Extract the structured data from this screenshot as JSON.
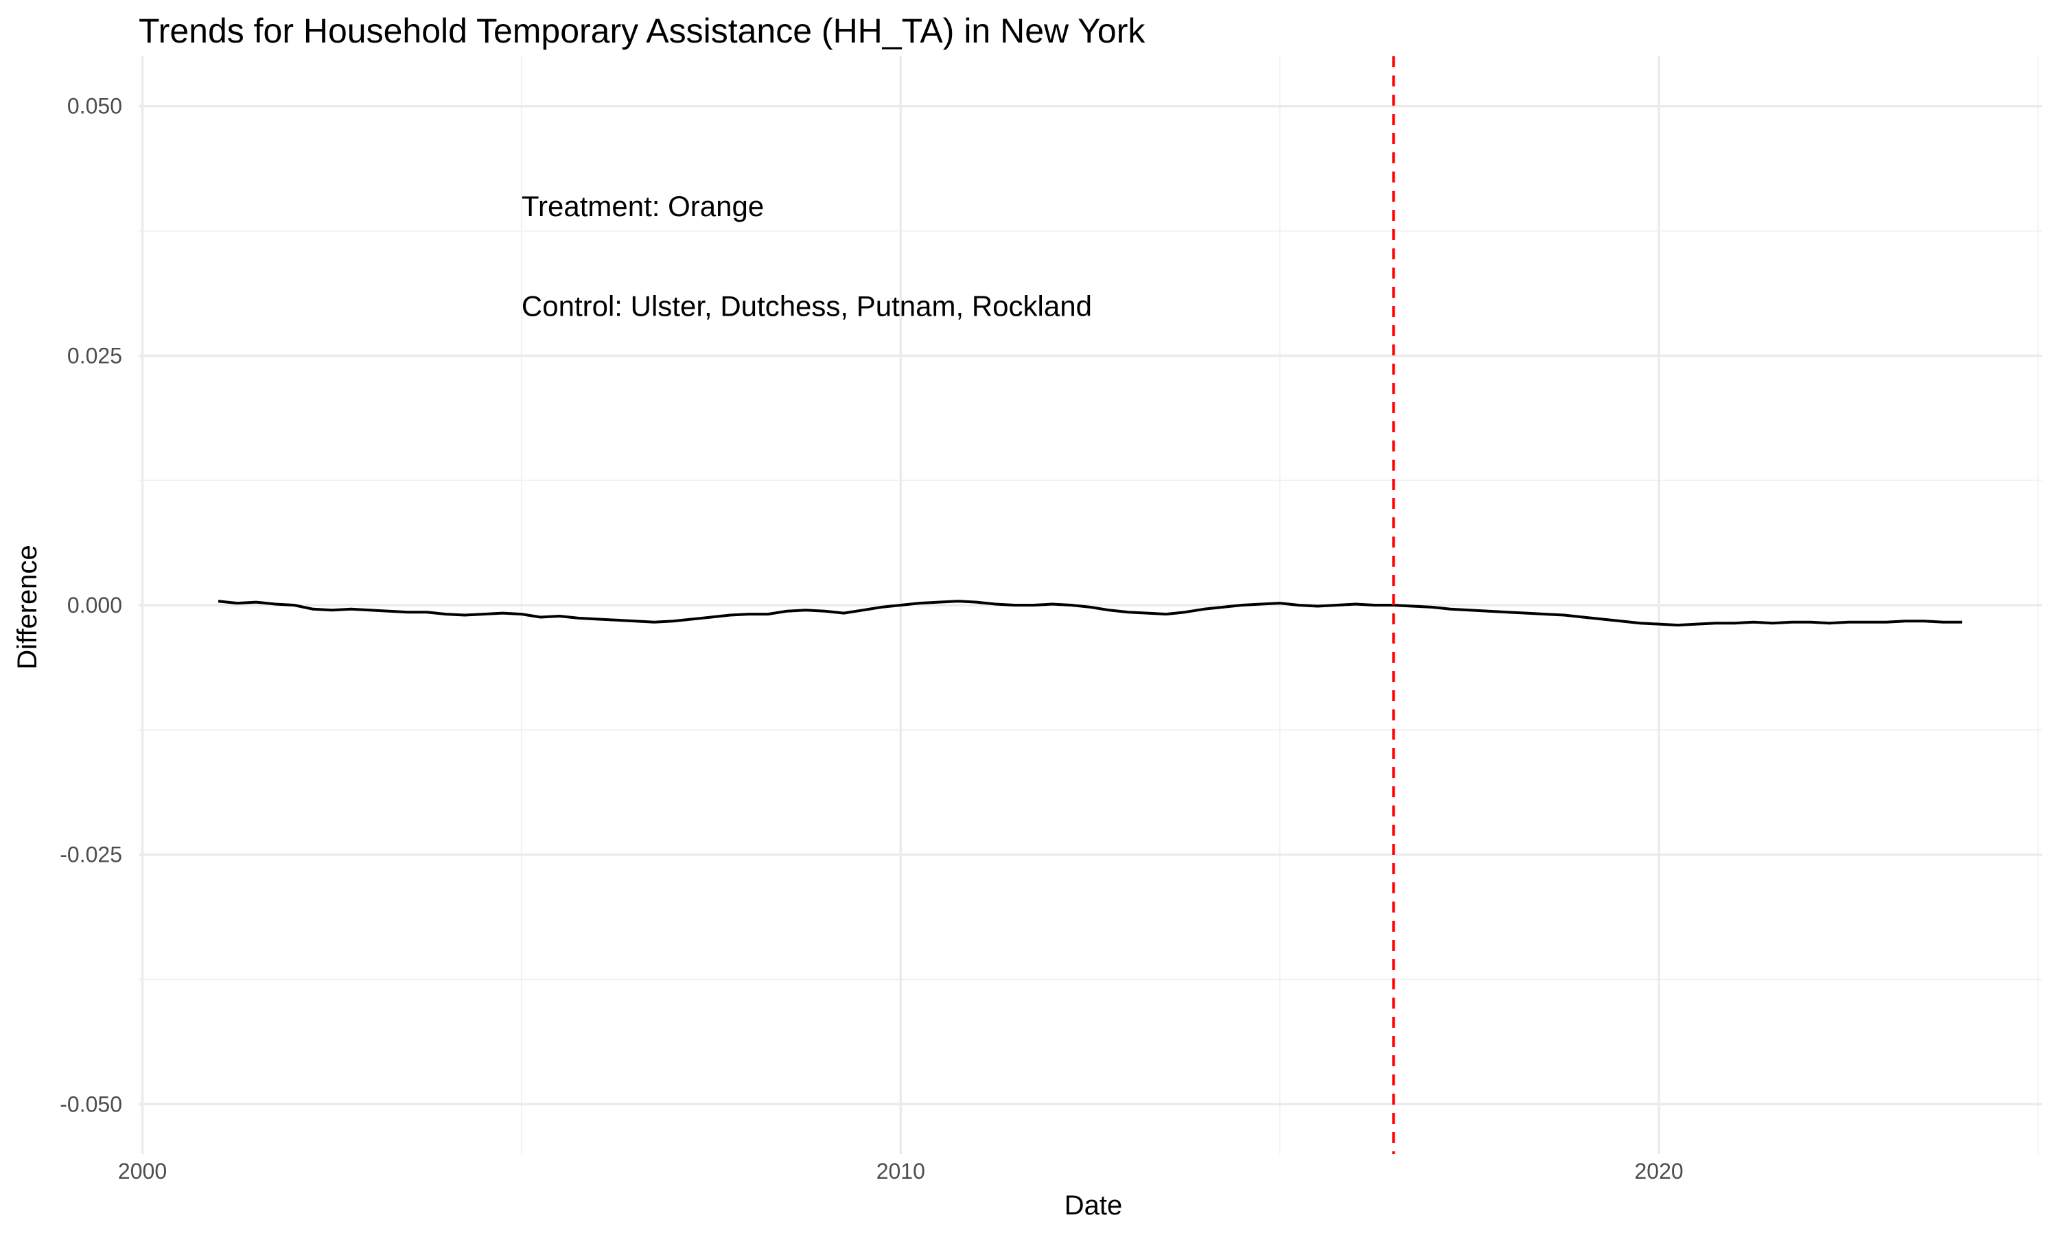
{
  "chart_data": {
    "type": "line",
    "title": "Trends for Household Temporary Assistance (HH_TA) in New York",
    "xlabel": "Date",
    "ylabel": "Difference",
    "xlim": [
      1999.95,
      2025.05
    ],
    "ylim": [
      -0.055,
      0.055
    ],
    "x_ticks": [
      2000,
      2010,
      2020
    ],
    "x_tick_labels": [
      "2000",
      "2010",
      "2020"
    ],
    "y_ticks": [
      -0.05,
      -0.025,
      0.0,
      0.025,
      0.05
    ],
    "y_tick_labels": [
      "-0.050",
      "-0.025",
      "0.000",
      "0.025",
      "0.050"
    ],
    "grid": true,
    "colors": {
      "series": "#000000",
      "vline": "#ff0000"
    },
    "annotations": [
      {
        "text": "Treatment: Orange",
        "x": 2005,
        "y": 0.04
      },
      {
        "text": "Control: Ulster, Dutchess, Putnam, Rockland",
        "x": 2005,
        "y": 0.03
      }
    ],
    "vline": {
      "x": 2016.5,
      "style": "dashed"
    },
    "series": [
      {
        "x": [
          2001.0,
          2001.25,
          2001.5,
          2001.75,
          2002.0,
          2002.25,
          2002.5,
          2002.75,
          2003.0,
          2003.25,
          2003.5,
          2003.75,
          2004.0,
          2004.25,
          2004.5,
          2004.75,
          2005.0,
          2005.25,
          2005.5,
          2005.75,
          2006.0,
          2006.25,
          2006.5,
          2006.75,
          2007.0,
          2007.25,
          2007.5,
          2007.75,
          2008.0,
          2008.25,
          2008.5,
          2008.75,
          2009.0,
          2009.25,
          2009.5,
          2009.75,
          2010.0,
          2010.25,
          2010.5,
          2010.75,
          2011.0,
          2011.25,
          2011.5,
          2011.75,
          2012.0,
          2012.25,
          2012.5,
          2012.75,
          2013.0,
          2013.25,
          2013.5,
          2013.75,
          2014.0,
          2014.25,
          2014.5,
          2014.75,
          2015.0,
          2015.25,
          2015.5,
          2015.75,
          2016.0,
          2016.25,
          2016.5,
          2016.75,
          2017.0,
          2017.25,
          2017.5,
          2017.75,
          2018.0,
          2018.25,
          2018.5,
          2018.75,
          2019.0,
          2019.25,
          2019.5,
          2019.75,
          2020.0,
          2020.25,
          2020.5,
          2020.75,
          2021.0,
          2021.25,
          2021.5,
          2021.75,
          2022.0,
          2022.25,
          2022.5,
          2022.75,
          2023.0,
          2023.25,
          2023.5,
          2023.75,
          2024.0
        ],
        "y": [
          0.0004,
          0.0002,
          0.0003,
          0.0001,
          0.0,
          -0.0004,
          -0.0005,
          -0.0004,
          -0.0005,
          -0.0006,
          -0.0007,
          -0.0007,
          -0.0009,
          -0.001,
          -0.0009,
          -0.0008,
          -0.0009,
          -0.0012,
          -0.0011,
          -0.0013,
          -0.0014,
          -0.0015,
          -0.0016,
          -0.0017,
          -0.0016,
          -0.0014,
          -0.0012,
          -0.001,
          -0.0009,
          -0.0009,
          -0.0006,
          -0.0005,
          -0.0006,
          -0.0008,
          -0.0005,
          -0.0002,
          0.0,
          0.0002,
          0.0003,
          0.0004,
          0.0003,
          0.0001,
          0.0,
          0.0,
          0.0001,
          0.0,
          -0.0002,
          -0.0005,
          -0.0007,
          -0.0008,
          -0.0009,
          -0.0007,
          -0.0004,
          -0.0002,
          0.0,
          0.0001,
          0.0002,
          0.0,
          -0.0001,
          0.0,
          0.0001,
          0.0,
          0.0,
          -0.0001,
          -0.0002,
          -0.0004,
          -0.0005,
          -0.0006,
          -0.0007,
          -0.0008,
          -0.0009,
          -0.001,
          -0.0012,
          -0.0014,
          -0.0016,
          -0.0018,
          -0.0019,
          -0.002,
          -0.0019,
          -0.0018,
          -0.0018,
          -0.0017,
          -0.0018,
          -0.0017,
          -0.0017,
          -0.0018,
          -0.0017,
          -0.0017,
          -0.0017,
          -0.0016,
          -0.0016,
          -0.0017,
          -0.0017
        ]
      }
    ]
  }
}
